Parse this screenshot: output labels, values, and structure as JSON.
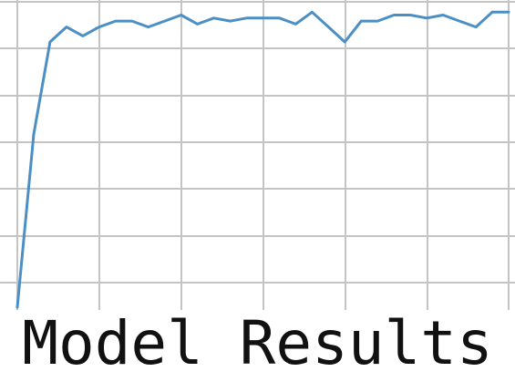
{
  "caption": "Model Results",
  "colors": {
    "line": "#4c8fc4",
    "grid": "#c4c4c4",
    "background": "#ffffff",
    "text": "#111111"
  },
  "chart_data": {
    "type": "line",
    "title": "",
    "xlabel": "",
    "ylabel": "",
    "grid": true,
    "xlim": [
      0,
      30
    ],
    "ylim": [
      0,
      1
    ],
    "x": [
      0,
      1,
      2,
      3,
      4,
      5,
      6,
      7,
      8,
      9,
      10,
      11,
      12,
      13,
      14,
      15,
      16,
      17,
      18,
      19,
      20,
      21,
      22,
      23,
      24,
      25,
      26,
      27,
      28,
      29,
      30
    ],
    "series": [
      {
        "name": "",
        "values": [
          0.0,
          0.58,
          0.89,
          0.94,
          0.91,
          0.94,
          0.96,
          0.96,
          0.94,
          0.96,
          0.98,
          0.95,
          0.97,
          0.96,
          0.97,
          0.97,
          0.97,
          0.95,
          0.99,
          0.94,
          0.89,
          0.96,
          0.96,
          0.98,
          0.98,
          0.97,
          0.98,
          0.96,
          0.94,
          0.99,
          0.99
        ]
      }
    ]
  }
}
